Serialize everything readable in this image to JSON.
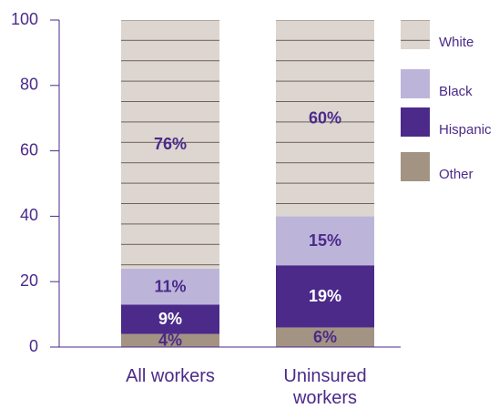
{
  "chart_data": {
    "type": "stacked-bar",
    "categories": [
      "All workers",
      "Uninsured workers"
    ],
    "series": [
      {
        "name": "Other",
        "color": "#a39383",
        "values": [
          4,
          6
        ],
        "value_labels": [
          "4%",
          "6%"
        ]
      },
      {
        "name": "Hispanic",
        "color": "#4b2a8a",
        "values": [
          9,
          19
        ],
        "value_labels": [
          "9%",
          "19%"
        ]
      },
      {
        "name": "Black",
        "color": "#bcb5d9",
        "values": [
          11,
          15
        ],
        "value_labels": [
          "11%",
          "15%"
        ]
      },
      {
        "name": "White",
        "color": "#ddd5cf",
        "values": [
          76,
          60
        ],
        "value_labels": [
          "76%",
          "60%"
        ]
      }
    ],
    "ylim": [
      0,
      100
    ],
    "yticks": [
      0,
      20,
      40,
      60,
      80,
      100
    ]
  }
}
